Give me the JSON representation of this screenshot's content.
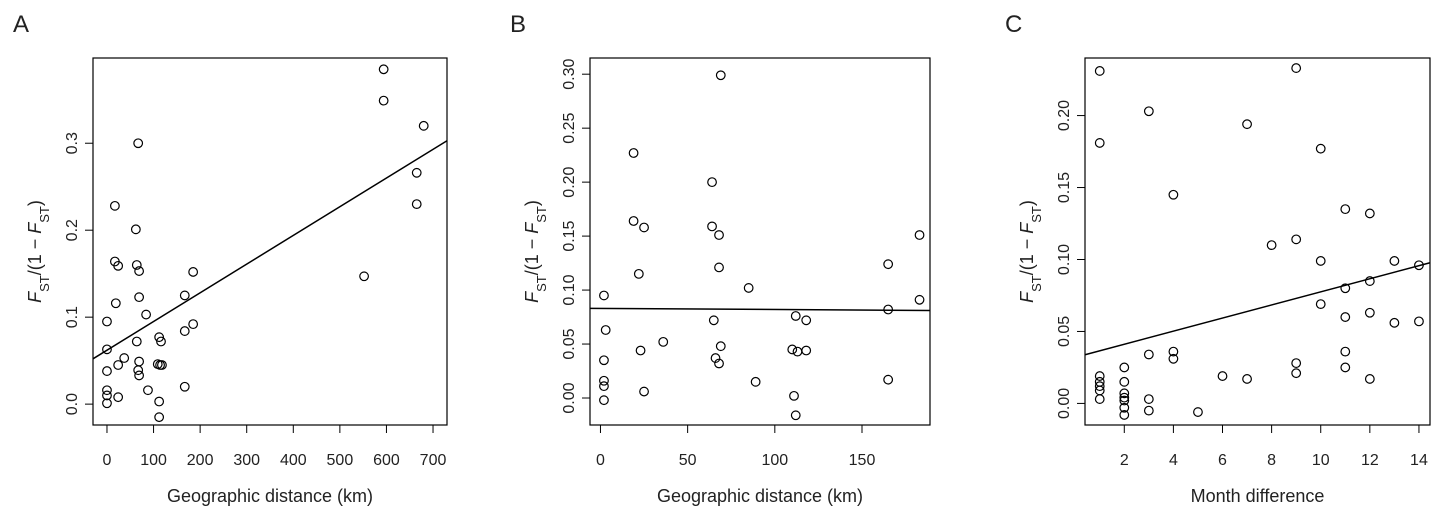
{
  "chart_data": [
    {
      "type": "scatter",
      "panel": "A",
      "xlabel": "Geographic distance (km)",
      "ylabel": [
        "F",
        "ST",
        "/(1 − ",
        "F",
        "ST",
        ")"
      ],
      "x": [
        0,
        0,
        0,
        0,
        0,
        0,
        17,
        17,
        24,
        19,
        24,
        24,
        37,
        67,
        62,
        64,
        69,
        69,
        64,
        69,
        67,
        69,
        84,
        88,
        112,
        116,
        109,
        114,
        118,
        112,
        112,
        167,
        167,
        167,
        185,
        185,
        552,
        594,
        594,
        680,
        665,
        665
      ],
      "values": [
        0.095,
        0.063,
        0.038,
        0.016,
        0.01,
        0.001,
        0.228,
        0.164,
        0.159,
        0.116,
        0.045,
        0.008,
        0.053,
        0.3,
        0.201,
        0.16,
        0.153,
        0.123,
        0.072,
        0.049,
        0.039,
        0.033,
        0.103,
        0.016,
        0.077,
        0.072,
        0.046,
        0.045,
        0.045,
        0.003,
        -0.015,
        0.125,
        0.084,
        0.02,
        0.152,
        0.092,
        0.147,
        0.385,
        0.349,
        0.32,
        0.266,
        0.23
      ],
      "fit": {
        "intercept": 0.062,
        "slope": 0.00033
      },
      "xlim": [
        -30,
        730
      ],
      "ylim": [
        -0.024,
        0.398
      ],
      "xticks": [
        0,
        100,
        200,
        300,
        400,
        500,
        600,
        700
      ],
      "yticks": [
        {
          "value": 0,
          "label": "0.0"
        },
        0.1,
        0.2,
        0.3
      ]
    },
    {
      "type": "scatter",
      "panel": "B",
      "xlabel": "Geographic distance (km)",
      "ylabel": [
        "F",
        "ST",
        "/(1 − ",
        "F",
        "ST",
        ")"
      ],
      "x": [
        2,
        3,
        2,
        2,
        2,
        2,
        19,
        19,
        25,
        22,
        23,
        25,
        36,
        69,
        64,
        64,
        68,
        68,
        65,
        66,
        69,
        68,
        85,
        89,
        110,
        112,
        118,
        113,
        118,
        111,
        112,
        165,
        165,
        165,
        183,
        183
      ],
      "values": [
        0.095,
        0.063,
        0.035,
        0.016,
        0.011,
        -0.002,
        0.227,
        0.164,
        0.158,
        0.115,
        0.044,
        0.006,
        0.052,
        0.299,
        0.2,
        0.159,
        0.151,
        0.121,
        0.072,
        0.037,
        0.048,
        0.032,
        0.102,
        0.015,
        0.045,
        0.076,
        0.072,
        0.043,
        0.044,
        0.002,
        -0.016,
        0.124,
        0.082,
        0.017,
        0.151,
        0.091
      ],
      "fit": {
        "intercept": 0.083,
        "slope": -1e-05
      },
      "xlim": [
        -6,
        189
      ],
      "ylim": [
        -0.025,
        0.315
      ],
      "xticks": [
        0,
        50,
        100,
        150
      ],
      "yticks": [
        {
          "value": 0,
          "label": "0.00"
        },
        0.05,
        {
          "value": 0.1,
          "label": "0.10"
        },
        0.15,
        {
          "value": 0.2,
          "label": "0.20"
        },
        0.25,
        {
          "value": 0.3,
          "label": "0.30"
        }
      ]
    },
    {
      "type": "scatter",
      "panel": "C",
      "xlabel": "Month difference",
      "ylabel": [
        "F",
        "ST",
        "/(1 − ",
        "F",
        "ST",
        ")"
      ],
      "x": [
        1,
        1,
        1,
        1,
        1,
        1,
        1,
        2,
        2,
        2,
        2,
        2,
        2,
        2,
        3,
        3,
        3,
        3,
        4,
        4,
        4,
        5,
        6,
        7,
        7,
        8,
        9,
        9,
        9,
        9,
        10,
        10,
        10,
        11,
        11,
        11,
        11,
        11,
        12,
        12,
        12,
        12,
        13,
        13,
        14,
        14
      ],
      "values": [
        0.231,
        0.181,
        0.019,
        0.015,
        0.012,
        0.009,
        0.003,
        0.025,
        0.015,
        0.007,
        0.004,
        0.002,
        -0.003,
        -0.008,
        0.203,
        0.034,
        0.003,
        -0.005,
        0.145,
        0.036,
        0.031,
        -0.006,
        0.019,
        0.194,
        0.017,
        0.11,
        0.233,
        0.114,
        0.028,
        0.021,
        0.177,
        0.099,
        0.069,
        0.135,
        0.08,
        0.06,
        0.036,
        0.025,
        0.132,
        0.085,
        0.063,
        0.017,
        0.099,
        0.056,
        0.096,
        0.057
      ],
      "fit": {
        "intercept": 0.032,
        "slope": 0.00455
      },
      "xlim": [
        0.4,
        14.45
      ],
      "ylim": [
        -0.015,
        0.24
      ],
      "xticks": [
        2,
        4,
        6,
        8,
        10,
        12,
        14
      ],
      "yticks": [
        {
          "value": 0,
          "label": "0.00"
        },
        0.05,
        {
          "value": 0.1,
          "label": "0.10"
        },
        0.15,
        {
          "value": 0.2,
          "label": "0.20"
        }
      ]
    }
  ]
}
